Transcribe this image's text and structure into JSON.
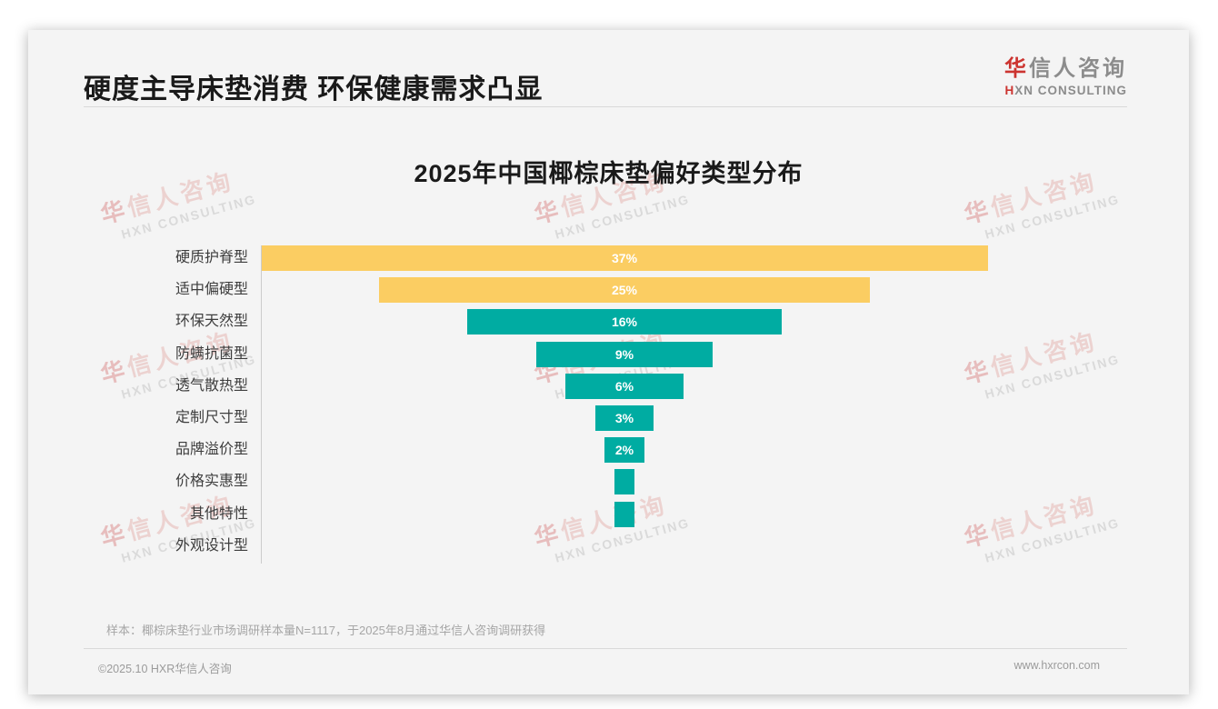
{
  "header": {
    "title": "硬度主导床垫消费 环保健康需求凸显",
    "logo": {
      "cn_first": "华",
      "cn_rest": "信人咨询",
      "en_first": "H",
      "en_rest": "XN CONSULTING"
    }
  },
  "watermark": {
    "cn_first": "华",
    "cn_rest": "信人咨询",
    "en": "HXN CONSULTING"
  },
  "chart_data": {
    "type": "bar",
    "variant": "centered-funnel-horizontal",
    "title": "2025年中国椰棕床垫偏好类型分布",
    "categories": [
      "硬质护脊型",
      "适中偏硬型",
      "环保天然型",
      "防螨抗菌型",
      "透气散热型",
      "定制尺寸型",
      "品牌溢价型",
      "价格实惠型",
      "其他特性",
      "外观设计型"
    ],
    "values": [
      37,
      25,
      16,
      9,
      6,
      3,
      2,
      1,
      1,
      0
    ],
    "data_labels": [
      "37%",
      "25%",
      "16%",
      "9%",
      "6%",
      "3%",
      "2%",
      "",
      "",
      ""
    ],
    "bar_colors": [
      "#FBCD62",
      "#FBCD62",
      "#00ACA2",
      "#00ACA2",
      "#00ACA2",
      "#00ACA2",
      "#00ACA2",
      "#00ACA2",
      "#00ACA2",
      "#00ACA2"
    ],
    "xlim": [
      0,
      37
    ],
    "xlabel": "",
    "ylabel": "",
    "grid": false,
    "legend": false,
    "data_label_color": "#ffffff"
  },
  "footnote": {
    "sample_note": "样本：椰棕床垫行业市场调研样本量N=1117，于2025年8月通过华信人咨询调研获得"
  },
  "footer": {
    "copyright": "©2025.10 HXR华信人咨询",
    "website": "www.hxrcon.com"
  }
}
